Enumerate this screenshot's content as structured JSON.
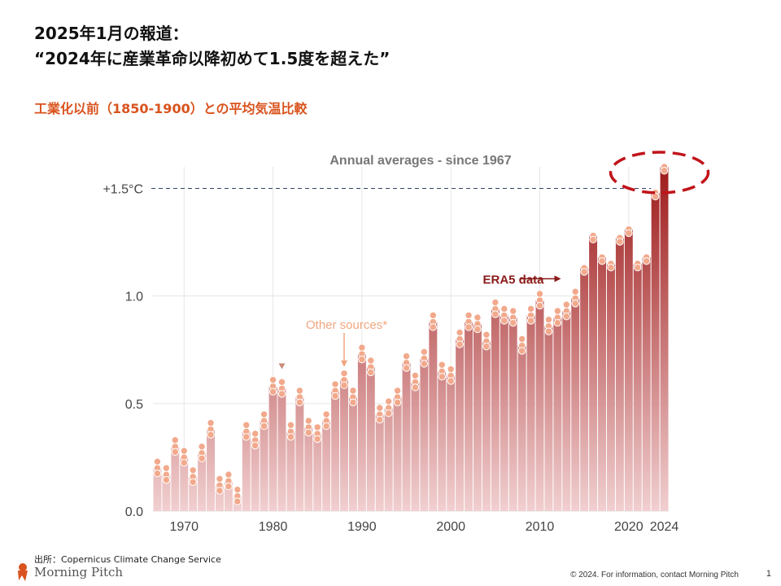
{
  "slide": {
    "headline_line1": "2025年1月の報道：",
    "headline_line2": "“2024年に産業革命以降初めて1.5度を超えた”",
    "subtitle": "工業化以前（1850-1900）との平均気温比較",
    "source": "出所：Copernicus Climate Change Service",
    "brand": "Morning Pitch",
    "copyright": "© 2024. For information, contact Morning Pitch",
    "page_number": "1"
  },
  "colors": {
    "headline": "#111111",
    "subtitle": "#d9531e",
    "bar_top": "#9e1b1b",
    "bar_bottom": "#f1cfd0",
    "dot": "#f2a98c",
    "annotation_orange": "#f0a77f",
    "era5_label": "#8b1a1a",
    "highlight_ellipse": "#c0141a",
    "threshold_line": "#34406a",
    "axis_text": "#444444",
    "brand_logo": "#d9531e"
  },
  "chart_data": {
    "type": "bar",
    "title": "Annual averages - since 1967",
    "ylim": [
      0,
      1.6
    ],
    "yticks": [
      {
        "value": 0,
        "label": "0.0"
      },
      {
        "value": 0.5,
        "label": "0.5"
      },
      {
        "value": 1.0,
        "label": "1.0"
      },
      {
        "value": 1.5,
        "label": "+1.5°C"
      }
    ],
    "xticks": [
      1970,
      1980,
      1990,
      2000,
      2010,
      2020,
      2024
    ],
    "threshold": {
      "value": 1.5,
      "label": "+1.5°C"
    },
    "years": [
      1967,
      1968,
      1969,
      1970,
      1971,
      1972,
      1973,
      1974,
      1975,
      1976,
      1977,
      1978,
      1979,
      1980,
      1981,
      1982,
      1983,
      1984,
      1985,
      1986,
      1987,
      1988,
      1989,
      1990,
      1991,
      1992,
      1993,
      1994,
      1995,
      1996,
      1997,
      1998,
      1999,
      2000,
      2001,
      2002,
      2003,
      2004,
      2005,
      2006,
      2007,
      2008,
      2009,
      2010,
      2011,
      2012,
      2013,
      2014,
      2015,
      2016,
      2017,
      2018,
      2019,
      2020,
      2021,
      2022,
      2023,
      2024
    ],
    "values": [
      0.2,
      0.17,
      0.3,
      0.25,
      0.16,
      0.27,
      0.38,
      0.12,
      0.14,
      0.07,
      0.37,
      0.33,
      0.42,
      0.58,
      0.57,
      0.37,
      0.53,
      0.39,
      0.36,
      0.42,
      0.56,
      0.61,
      0.53,
      0.73,
      0.67,
      0.45,
      0.48,
      0.53,
      0.69,
      0.6,
      0.71,
      0.88,
      0.65,
      0.63,
      0.8,
      0.88,
      0.87,
      0.79,
      0.94,
      0.91,
      0.9,
      0.77,
      0.91,
      0.98,
      0.86,
      0.9,
      0.93,
      0.99,
      1.13,
      1.28,
      1.18,
      1.15,
      1.27,
      1.31,
      1.15,
      1.18,
      1.48,
      1.6
    ],
    "annotations": [
      {
        "label": "ERA5 data",
        "year": 2010,
        "value": 1.08
      },
      {
        "label": "Other sources*",
        "year": 1988,
        "value": 0.87
      }
    ],
    "highlight_year": 2024
  }
}
